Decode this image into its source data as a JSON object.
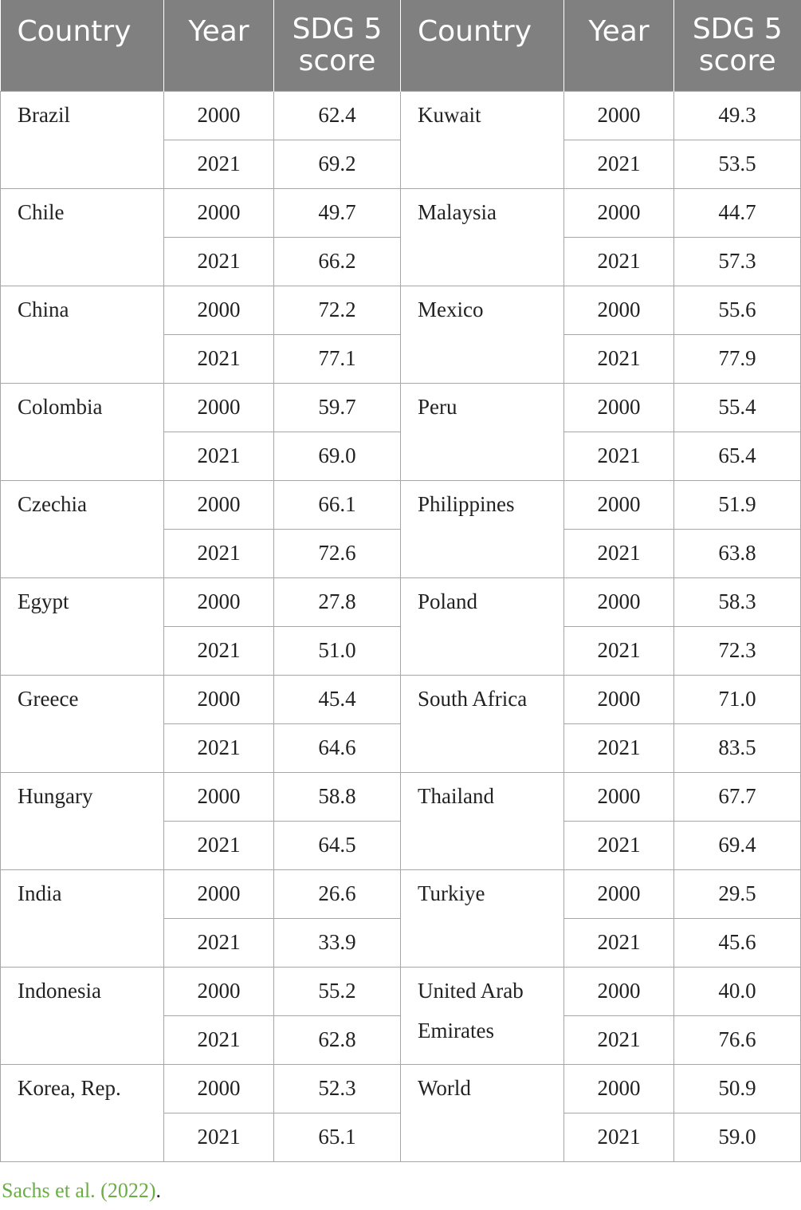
{
  "headers": {
    "country": "Country",
    "year": "Year",
    "score_line1": "SDG 5",
    "score_line2": "score"
  },
  "left": [
    {
      "country": "Brazil",
      "y1": "2000",
      "s1": "62.4",
      "y2": "2021",
      "s2": "69.2"
    },
    {
      "country": "Chile",
      "y1": "2000",
      "s1": "49.7",
      "y2": "2021",
      "s2": "66.2"
    },
    {
      "country": "China",
      "y1": "2000",
      "s1": "72.2",
      "y2": "2021",
      "s2": "77.1"
    },
    {
      "country": "Colombia",
      "y1": "2000",
      "s1": "59.7",
      "y2": "2021",
      "s2": "69.0"
    },
    {
      "country": "Czechia",
      "y1": "2000",
      "s1": "66.1",
      "y2": "2021",
      "s2": "72.6"
    },
    {
      "country": "Egypt",
      "y1": "2000",
      "s1": "27.8",
      "y2": "2021",
      "s2": "51.0"
    },
    {
      "country": "Greece",
      "y1": "2000",
      "s1": "45.4",
      "y2": "2021",
      "s2": "64.6"
    },
    {
      "country": "Hungary",
      "y1": "2000",
      "s1": "58.8",
      "y2": "2021",
      "s2": "64.5"
    },
    {
      "country": "India",
      "y1": "2000",
      "s1": "26.6",
      "y2": "2021",
      "s2": "33.9"
    },
    {
      "country": "Indonesia",
      "y1": "2000",
      "s1": "55.2",
      "y2": "2021",
      "s2": "62.8"
    },
    {
      "country": "Korea, Rep.",
      "y1": "2000",
      "s1": "52.3",
      "y2": "2021",
      "s2": "65.1"
    }
  ],
  "right": [
    {
      "country": "Kuwait",
      "y1": "2000",
      "s1": "49.3",
      "y2": "2021",
      "s2": "53.5"
    },
    {
      "country": "Malaysia",
      "y1": "2000",
      "s1": "44.7",
      "y2": "2021",
      "s2": "57.3"
    },
    {
      "country": "Mexico",
      "y1": "2000",
      "s1": "55.6",
      "y2": "2021",
      "s2": "77.9"
    },
    {
      "country": "Peru",
      "y1": "2000",
      "s1": "55.4",
      "y2": "2021",
      "s2": "65.4"
    },
    {
      "country": "Philippines",
      "y1": "2000",
      "s1": "51.9",
      "y2": "2021",
      "s2": "63.8"
    },
    {
      "country": "Poland",
      "y1": "2000",
      "s1": "58.3",
      "y2": "2021",
      "s2": "72.3"
    },
    {
      "country": "South Africa",
      "y1": "2000",
      "s1": "71.0",
      "y2": "2021",
      "s2": "83.5"
    },
    {
      "country": "Thailand",
      "y1": "2000",
      "s1": "67.7",
      "y2": "2021",
      "s2": "69.4"
    },
    {
      "country": "Turkiye",
      "y1": "2000",
      "s1": "29.5",
      "y2": "2021",
      "s2": "45.6"
    },
    {
      "country": "United Arab Emirates",
      "y1": "2000",
      "s1": "40.0",
      "y2": "2021",
      "s2": "76.6"
    },
    {
      "country": "World",
      "y1": "2000",
      "s1": "50.9",
      "y2": "2021",
      "s2": "59.0"
    }
  ],
  "source": {
    "text": "Sachs et al. (2022)",
    "punct": "."
  },
  "colors": {
    "header_bg": "#808080",
    "header_text": "#ffffff",
    "source_link": "#6aad45"
  }
}
